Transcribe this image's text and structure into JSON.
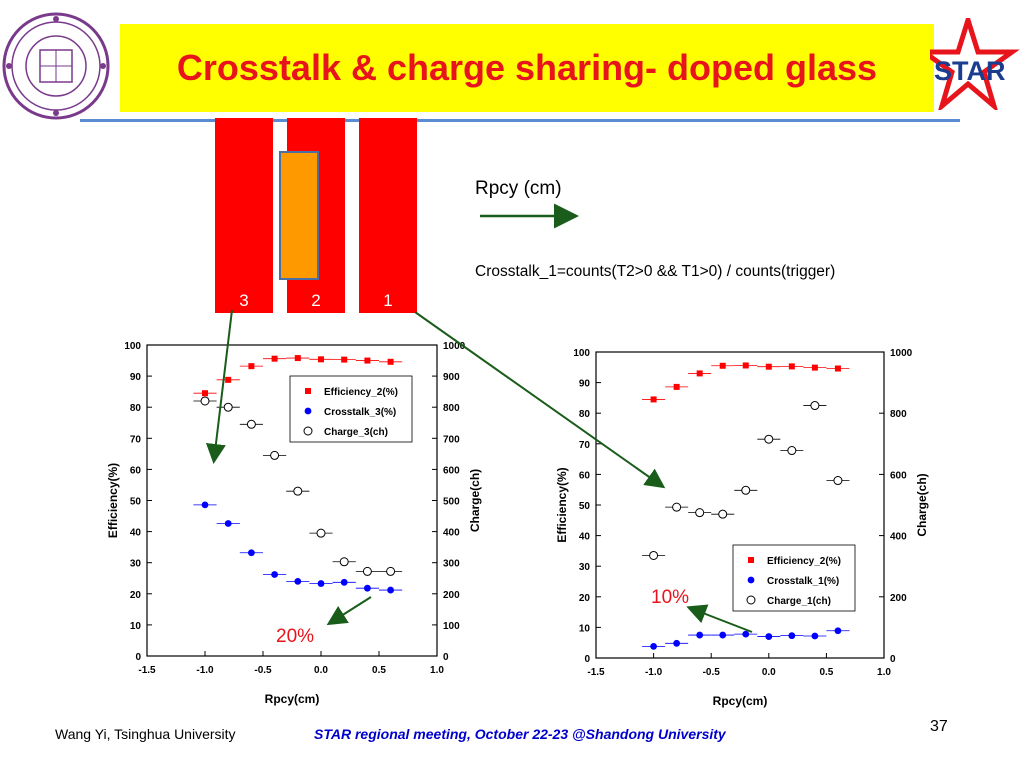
{
  "slide": {
    "title": "Crosstalk & charge sharing- doped glass",
    "rpcy_label": "Rpcy (cm)",
    "formula": "Crosstalk_1=counts(T2>0 && T1>0) / counts(trigger)",
    "strips": [
      {
        "label": "3"
      },
      {
        "label": "2"
      },
      {
        "label": "1"
      }
    ],
    "annotation_left": "20%",
    "annotation_right": "10%",
    "footer_left": "Wang Yi, Tsinghua University",
    "footer_center": "STAR regional meeting, October 22-23 @Shandong University",
    "page_number": "37",
    "logo_text": "STAR",
    "colors": {
      "title": "#e8141b",
      "title_bg": "#ffff00",
      "strip": "#ff0000",
      "overlay": "#ff9900",
      "arrow": "#1a5c1a",
      "footer_link": "#0000cc"
    }
  },
  "chart_data": [
    {
      "type": "scatter",
      "xlabel": "Rpcy(cm)",
      "ylabel": "Efficiency(%)",
      "y2label": "Charge(ch)",
      "xlim": [
        -1.5,
        1.0
      ],
      "ylim": [
        0,
        100
      ],
      "y2lim": [
        0,
        1000
      ],
      "xticks": [
        "-1.5",
        "-1.0",
        "-0.5",
        "0.0",
        "0.5",
        "1.0"
      ],
      "yticks": [
        "0",
        "10",
        "20",
        "30",
        "40",
        "50",
        "60",
        "70",
        "80",
        "90",
        "100"
      ],
      "y2ticks": [
        "0",
        "100",
        "200",
        "300",
        "400",
        "500",
        "600",
        "700",
        "800",
        "900",
        "1000"
      ],
      "legend_position": "top-right",
      "series": [
        {
          "name": "Efficiency_2(%)",
          "marker": "square",
          "color": "#ff0000",
          "axis": "left",
          "x": [
            -1.0,
            -0.8,
            -0.6,
            -0.4,
            -0.2,
            0.0,
            0.2,
            0.4,
            0.6
          ],
          "y": [
            84.5,
            88.8,
            93.2,
            95.6,
            95.8,
            95.4,
            95.3,
            95.0,
            94.6
          ]
        },
        {
          "name": "Crosstalk_3(%)",
          "marker": "circle-filled",
          "color": "#0000ff",
          "axis": "left",
          "x": [
            -1.0,
            -0.8,
            -0.6,
            -0.4,
            -0.2,
            0.0,
            0.2,
            0.4,
            0.6
          ],
          "y": [
            48.6,
            42.6,
            33.2,
            26.2,
            24.0,
            23.3,
            23.7,
            21.8,
            21.2
          ]
        },
        {
          "name": "Charge_3(ch)",
          "marker": "circle-open",
          "color": "#000000",
          "axis": "right",
          "x": [
            -1.0,
            -0.8,
            -0.6,
            -0.4,
            -0.2,
            0.0,
            0.2,
            0.4,
            0.6
          ],
          "y": [
            820,
            800,
            745,
            645,
            530,
            395,
            303,
            272,
            272
          ]
        }
      ]
    },
    {
      "type": "scatter",
      "xlabel": "Rpcy(cm)",
      "ylabel": "Efficiency(%)",
      "y2label": "Charge(ch)",
      "xlim": [
        -1.5,
        1.0
      ],
      "ylim": [
        0,
        100
      ],
      "y2lim": [
        0,
        1000
      ],
      "xticks": [
        "-1.5",
        "-1.0",
        "-0.5",
        "0.0",
        "0.5",
        "1.0"
      ],
      "yticks": [
        "0",
        "10",
        "20",
        "30",
        "40",
        "50",
        "60",
        "70",
        "80",
        "90",
        "100"
      ],
      "y2ticks": [
        "0",
        "200",
        "400",
        "600",
        "800",
        "1000"
      ],
      "legend_position": "bottom-right",
      "series": [
        {
          "name": "Efficiency_2(%)",
          "marker": "square",
          "color": "#ff0000",
          "axis": "left",
          "x": [
            -1.0,
            -0.8,
            -0.6,
            -0.4,
            -0.2,
            0.0,
            0.2,
            0.4,
            0.6
          ],
          "y": [
            84.5,
            88.6,
            93.0,
            95.5,
            95.6,
            95.2,
            95.3,
            94.9,
            94.6
          ]
        },
        {
          "name": "Crosstalk_1(%)",
          "marker": "circle-filled",
          "color": "#0000ff",
          "axis": "left",
          "x": [
            -1.0,
            -0.8,
            -0.6,
            -0.4,
            -0.2,
            0.0,
            0.2,
            0.4,
            0.6
          ],
          "y": [
            3.8,
            4.8,
            7.5,
            7.5,
            7.8,
            7.0,
            7.3,
            7.2,
            8.9
          ]
        },
        {
          "name": "Charge_1(ch)",
          "marker": "circle-open",
          "color": "#000000",
          "axis": "right",
          "x": [
            -1.0,
            -0.8,
            -0.6,
            -0.4,
            -0.2,
            0.0,
            0.2,
            0.4,
            0.6
          ],
          "y": [
            335,
            493,
            475,
            470,
            548,
            715,
            678,
            825,
            580
          ]
        }
      ]
    }
  ]
}
